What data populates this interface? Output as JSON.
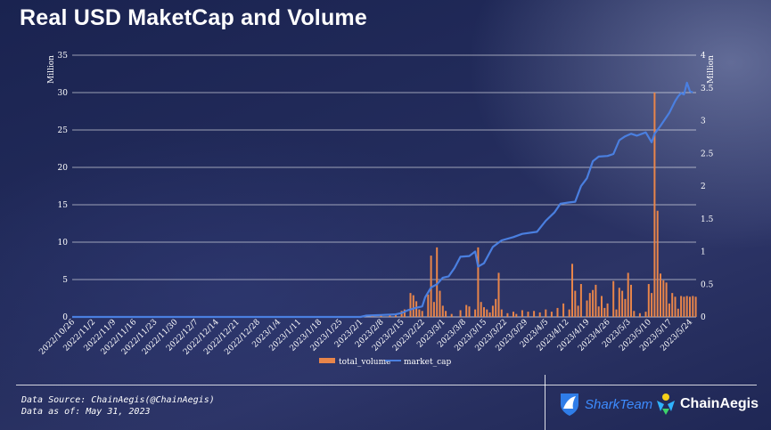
{
  "title": "Real USD MaketCap and Volume",
  "footer": {
    "source_line": "Data Source: ChainAegis(@ChainAegis)",
    "asof_line": "Data as of: May 31, 2023",
    "logo_sharkteam": "SharkTeam",
    "logo_chainaegis": "ChainAegis"
  },
  "colors": {
    "volume": "#e8854a",
    "market_cap": "#4a7fe0",
    "grid": "#ffffff",
    "text": "#ffffff"
  },
  "chart_data": {
    "type": "bar",
    "left_axis": {
      "unit": "Million",
      "ticks": [
        "0",
        "5",
        "10",
        "15",
        "20",
        "25",
        "30",
        "35"
      ],
      "ylim": [
        0,
        35
      ]
    },
    "right_axis": {
      "unit": "Million",
      "ticks": [
        "0",
        "0.5",
        "1",
        "1.5",
        "2",
        "2.5",
        "3",
        "3.5",
        "4"
      ],
      "ylim": [
        0,
        4
      ]
    },
    "x_ticks": [
      "2022/10/26",
      "2022/11/2",
      "2022/11/9",
      "2022/11/16",
      "2022/11/23",
      "2022/11/30",
      "2022/12/7",
      "2022/12/14",
      "2022/12/21",
      "2022/12/28",
      "2023/1/4",
      "2023/1/11",
      "2023/1/18",
      "2023/1/25",
      "2023/2/1",
      "2023/2/8",
      "2023/2/15",
      "2023/2/22",
      "2023/3/1",
      "2023/3/8",
      "2023/3/15",
      "2023/3/22",
      "2023/3/29",
      "2023/4/5",
      "2023/4/12",
      "2023/4/19",
      "2023/4/26",
      "2023/5/3",
      "2023/5/10",
      "2023/5/17",
      "2023/5/24"
    ],
    "grid": true,
    "legend_position": "bottom-center",
    "series": [
      {
        "name": "total_volume",
        "type": "bar",
        "axis": "left",
        "values": [
          {
            "x": "2023/2/5",
            "y": 0.2
          },
          {
            "x": "2023/2/8",
            "y": 0.3
          },
          {
            "x": "2023/2/11",
            "y": 0.4
          },
          {
            "x": "2023/2/13",
            "y": 0.3
          },
          {
            "x": "2023/2/15",
            "y": 0.8
          },
          {
            "x": "2023/2/16",
            "y": 1.0
          },
          {
            "x": "2023/2/18",
            "y": 3.2
          },
          {
            "x": "2023/2/19",
            "y": 2.9
          },
          {
            "x": "2023/2/20",
            "y": 2.1
          },
          {
            "x": "2023/2/21",
            "y": 1.0
          },
          {
            "x": "2023/2/22",
            "y": 0.8
          },
          {
            "x": "2023/2/24",
            "y": 3.0
          },
          {
            "x": "2023/2/25",
            "y": 8.2
          },
          {
            "x": "2023/2/26",
            "y": 2.0
          },
          {
            "x": "2023/2/27",
            "y": 9.3
          },
          {
            "x": "2023/2/28",
            "y": 3.5
          },
          {
            "x": "2023/3/1",
            "y": 1.5
          },
          {
            "x": "2023/3/2",
            "y": 0.8
          },
          {
            "x": "2023/3/4",
            "y": 0.4
          },
          {
            "x": "2023/3/7",
            "y": 0.9
          },
          {
            "x": "2023/3/9",
            "y": 1.6
          },
          {
            "x": "2023/3/10",
            "y": 1.4
          },
          {
            "x": "2023/3/12",
            "y": 1.0
          },
          {
            "x": "2023/3/13",
            "y": 9.3
          },
          {
            "x": "2023/3/14",
            "y": 2.0
          },
          {
            "x": "2023/3/15",
            "y": 1.3
          },
          {
            "x": "2023/3/16",
            "y": 1.0
          },
          {
            "x": "2023/3/17",
            "y": 0.6
          },
          {
            "x": "2023/3/18",
            "y": 1.5
          },
          {
            "x": "2023/3/19",
            "y": 2.4
          },
          {
            "x": "2023/3/20",
            "y": 5.9
          },
          {
            "x": "2023/3/21",
            "y": 1.0
          },
          {
            "x": "2023/3/23",
            "y": 0.5
          },
          {
            "x": "2023/3/25",
            "y": 0.7
          },
          {
            "x": "2023/3/26",
            "y": 0.4
          },
          {
            "x": "2023/3/28",
            "y": 0.9
          },
          {
            "x": "2023/3/30",
            "y": 0.7
          },
          {
            "x": "2023/4/1",
            "y": 0.8
          },
          {
            "x": "2023/4/3",
            "y": 0.6
          },
          {
            "x": "2023/4/5",
            "y": 1.0
          },
          {
            "x": "2023/4/7",
            "y": 0.7
          },
          {
            "x": "2023/4/9",
            "y": 1.2
          },
          {
            "x": "2023/4/11",
            "y": 1.8
          },
          {
            "x": "2023/4/13",
            "y": 1.0
          },
          {
            "x": "2023/4/14",
            "y": 7.1
          },
          {
            "x": "2023/4/15",
            "y": 3.5
          },
          {
            "x": "2023/4/16",
            "y": 1.5
          },
          {
            "x": "2023/4/17",
            "y": 4.4
          },
          {
            "x": "2023/4/19",
            "y": 2.2
          },
          {
            "x": "2023/4/20",
            "y": 3.2
          },
          {
            "x": "2023/4/21",
            "y": 3.6
          },
          {
            "x": "2023/4/22",
            "y": 4.3
          },
          {
            "x": "2023/4/23",
            "y": 1.4
          },
          {
            "x": "2023/4/24",
            "y": 2.8
          },
          {
            "x": "2023/4/25",
            "y": 1.2
          },
          {
            "x": "2023/4/26",
            "y": 1.8
          },
          {
            "x": "2023/4/28",
            "y": 4.8
          },
          {
            "x": "2023/4/29",
            "y": 1.0
          },
          {
            "x": "2023/4/30",
            "y": 3.9
          },
          {
            "x": "2023/5/1",
            "y": 3.5
          },
          {
            "x": "2023/5/2",
            "y": 2.4
          },
          {
            "x": "2023/5/3",
            "y": 5.9
          },
          {
            "x": "2023/5/4",
            "y": 4.3
          },
          {
            "x": "2023/5/5",
            "y": 0.8
          },
          {
            "x": "2023/5/7",
            "y": 0.5
          },
          {
            "x": "2023/5/9",
            "y": 0.7
          },
          {
            "x": "2023/5/10",
            "y": 4.4
          },
          {
            "x": "2023/5/11",
            "y": 3.2
          },
          {
            "x": "2023/5/12",
            "y": 30.0
          },
          {
            "x": "2023/5/13",
            "y": 14.2
          },
          {
            "x": "2023/5/14",
            "y": 5.8
          },
          {
            "x": "2023/5/15",
            "y": 4.9
          },
          {
            "x": "2023/5/16",
            "y": 4.6
          },
          {
            "x": "2023/5/17",
            "y": 1.8
          },
          {
            "x": "2023/5/18",
            "y": 3.2
          },
          {
            "x": "2023/5/19",
            "y": 2.7
          },
          {
            "x": "2023/5/20",
            "y": 1.1
          },
          {
            "x": "2023/5/21",
            "y": 2.8
          },
          {
            "x": "2023/5/22",
            "y": 2.7
          },
          {
            "x": "2023/5/23",
            "y": 2.8
          },
          {
            "x": "2023/5/24",
            "y": 2.7
          },
          {
            "x": "2023/5/25",
            "y": 2.8
          },
          {
            "x": "2023/5/26",
            "y": 2.7
          }
        ]
      },
      {
        "name": "market_cap",
        "type": "line",
        "axis": "right",
        "values": [
          {
            "x": "2022/10/26",
            "y": 0.0
          },
          {
            "x": "2023/2/1",
            "y": 0.0
          },
          {
            "x": "2023/2/3",
            "y": 0.02
          },
          {
            "x": "2023/2/8",
            "y": 0.03
          },
          {
            "x": "2023/2/13",
            "y": 0.04
          },
          {
            "x": "2023/2/15",
            "y": 0.06
          },
          {
            "x": "2023/2/17",
            "y": 0.1
          },
          {
            "x": "2023/2/20",
            "y": 0.14
          },
          {
            "x": "2023/2/22",
            "y": 0.16
          },
          {
            "x": "2023/2/23",
            "y": 0.3
          },
          {
            "x": "2023/2/25",
            "y": 0.45
          },
          {
            "x": "2023/2/27",
            "y": 0.5
          },
          {
            "x": "2023/3/1",
            "y": 0.6
          },
          {
            "x": "2023/3/3",
            "y": 0.62
          },
          {
            "x": "2023/3/5",
            "y": 0.75
          },
          {
            "x": "2023/3/7",
            "y": 0.92
          },
          {
            "x": "2023/3/10",
            "y": 0.93
          },
          {
            "x": "2023/3/12",
            "y": 1.0
          },
          {
            "x": "2023/3/13",
            "y": 0.77
          },
          {
            "x": "2023/3/15",
            "y": 0.82
          },
          {
            "x": "2023/3/18",
            "y": 1.07
          },
          {
            "x": "2023/3/21",
            "y": 1.17
          },
          {
            "x": "2023/3/25",
            "y": 1.22
          },
          {
            "x": "2023/3/28",
            "y": 1.27
          },
          {
            "x": "2023/4/2",
            "y": 1.3
          },
          {
            "x": "2023/4/5",
            "y": 1.47
          },
          {
            "x": "2023/4/8",
            "y": 1.6
          },
          {
            "x": "2023/4/10",
            "y": 1.73
          },
          {
            "x": "2023/4/13",
            "y": 1.75
          },
          {
            "x": "2023/4/15",
            "y": 1.76
          },
          {
            "x": "2023/4/17",
            "y": 2.0
          },
          {
            "x": "2023/4/19",
            "y": 2.12
          },
          {
            "x": "2023/4/21",
            "y": 2.38
          },
          {
            "x": "2023/4/23",
            "y": 2.45
          },
          {
            "x": "2023/4/26",
            "y": 2.46
          },
          {
            "x": "2023/4/28",
            "y": 2.49
          },
          {
            "x": "2023/4/30",
            "y": 2.7
          },
          {
            "x": "2023/5/2",
            "y": 2.76
          },
          {
            "x": "2023/5/4",
            "y": 2.8
          },
          {
            "x": "2023/5/6",
            "y": 2.77
          },
          {
            "x": "2023/5/9",
            "y": 2.82
          },
          {
            "x": "2023/5/11",
            "y": 2.67
          },
          {
            "x": "2023/5/12",
            "y": 2.8
          },
          {
            "x": "2023/5/14",
            "y": 2.92
          },
          {
            "x": "2023/5/17",
            "y": 3.12
          },
          {
            "x": "2023/5/19",
            "y": 3.3
          },
          {
            "x": "2023/5/20",
            "y": 3.37
          },
          {
            "x": "2023/5/21",
            "y": 3.42
          },
          {
            "x": "2023/5/22",
            "y": 3.4
          },
          {
            "x": "2023/5/23",
            "y": 3.58
          },
          {
            "x": "2023/5/24",
            "y": 3.45
          },
          {
            "x": "2023/5/25",
            "y": 3.43
          }
        ]
      }
    ]
  }
}
